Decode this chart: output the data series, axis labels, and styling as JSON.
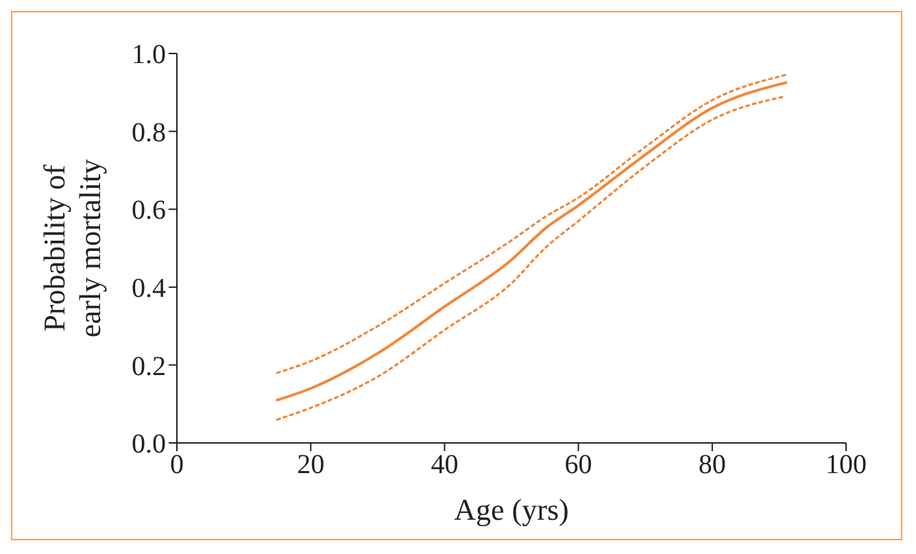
{
  "chart_data": {
    "type": "line",
    "xlabel": "Age (yrs)",
    "ylabel": "Probability of early mortality",
    "x": [
      15,
      20,
      30,
      40,
      50,
      55,
      60,
      70,
      80,
      91
    ],
    "series": [
      {
        "color": "#f0883a",
        "line_style": "solid",
        "values": [
          0.11,
          0.14,
          0.23,
          0.35,
          0.47,
          0.55,
          0.61,
          0.74,
          0.86,
          0.925
        ]
      },
      {
        "color": "#f0883a",
        "line_style": "dotted",
        "values": [
          0.18,
          0.21,
          0.3,
          0.41,
          0.52,
          0.58,
          0.63,
          0.76,
          0.88,
          0.945
        ]
      },
      {
        "color": "#f0883a",
        "line_style": "dotted",
        "values": [
          0.06,
          0.09,
          0.17,
          0.29,
          0.41,
          0.5,
          0.57,
          0.71,
          0.83,
          0.89
        ]
      }
    ],
    "xlim": [
      0,
      100
    ],
    "xticks": [
      0,
      20,
      40,
      60,
      80,
      100
    ],
    "ylim": [
      0,
      1
    ],
    "yticks": [
      {
        "value": 0,
        "label": "0.0"
      },
      {
        "value": 0.2,
        "label": "0.2"
      },
      {
        "value": 0.4,
        "label": "0.4"
      },
      {
        "value": 0.6,
        "label": "0.6"
      },
      {
        "value": 0.8,
        "label": "0.8"
      },
      {
        "value": 1,
        "label": "1.0"
      }
    ],
    "grid": false,
    "legend": false,
    "marker": "none"
  }
}
